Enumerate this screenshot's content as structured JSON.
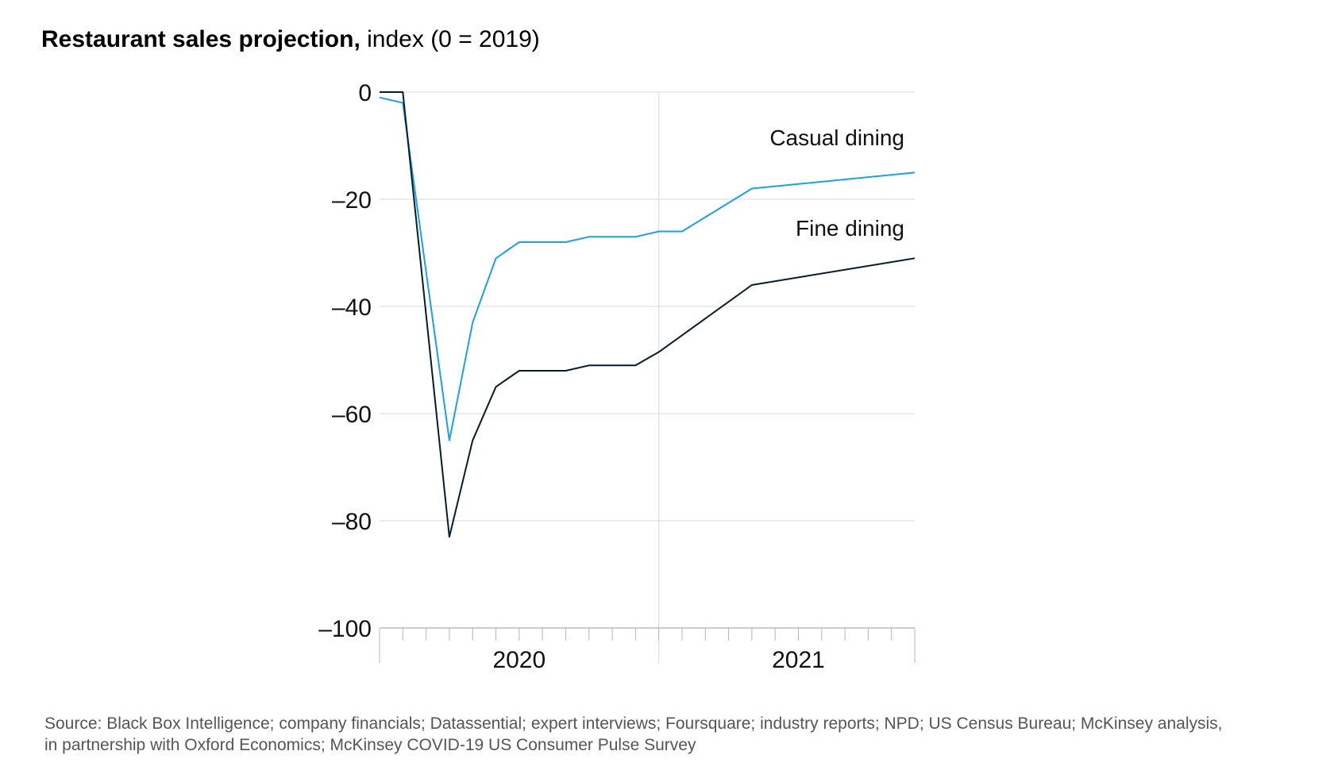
{
  "chart_data": {
    "type": "line",
    "title": "Restaurant sales projection,",
    "subtitle": "index (0 = 2019)",
    "ylim": [
      -100,
      0
    ],
    "yticks": [
      0,
      -20,
      -40,
      -60,
      -80,
      -100
    ],
    "ytick_labels": [
      "0",
      "–20",
      "–40",
      "–60",
      "–80",
      "–100"
    ],
    "x_unit": "month",
    "xlim": [
      "2019-12",
      "2021-12"
    ],
    "year_labels": [
      {
        "label": "2020",
        "center_month": 6
      },
      {
        "label": "2021",
        "center_month": 18
      }
    ],
    "year_divider_month": 12,
    "grid": true,
    "series": [
      {
        "name": "Casual dining",
        "color": "#1aa1e6",
        "points": [
          [
            0,
            -1
          ],
          [
            1,
            -2
          ],
          [
            3,
            -65
          ],
          [
            4,
            -43
          ],
          [
            5,
            -31
          ],
          [
            6,
            -28
          ],
          [
            7,
            -28
          ],
          [
            8,
            -28
          ],
          [
            9,
            -27
          ],
          [
            10,
            -27
          ],
          [
            11,
            -27
          ],
          [
            12,
            -26
          ],
          [
            13,
            -26
          ],
          [
            16,
            -18
          ],
          [
            23,
            -15
          ]
        ]
      },
      {
        "name": "Fine dining",
        "color": "#051c2c",
        "points": [
          [
            0,
            0
          ],
          [
            1,
            0
          ],
          [
            3,
            -83
          ],
          [
            4,
            -65
          ],
          [
            5,
            -55
          ],
          [
            6,
            -52
          ],
          [
            7,
            -52
          ],
          [
            8,
            -52
          ],
          [
            9,
            -51
          ],
          [
            10,
            -51
          ],
          [
            11,
            -51
          ],
          [
            12,
            -48.5
          ],
          [
            16,
            -36
          ],
          [
            23,
            -31
          ]
        ]
      }
    ]
  },
  "source": {
    "line1": "Source: Black Box Intelligence; company financials; Datassential; expert interviews; Foursquare; industry reports; NPD; US Census Bureau; McKinsey analysis,",
    "line2": "in partnership with Oxford Economics; McKinsey COVID-19 US Consumer Pulse Survey"
  }
}
